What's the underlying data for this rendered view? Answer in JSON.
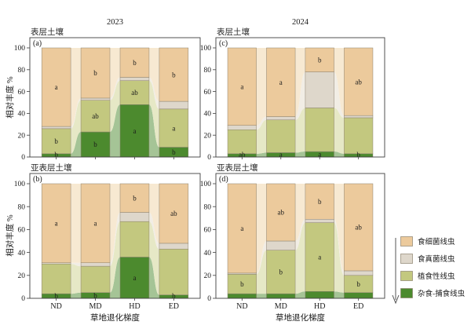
{
  "figure": {
    "ylabel": "相对丰度 %",
    "xlabel": "草地退化梯度",
    "col_titles": [
      "2023",
      "2024"
    ],
    "yticks": [
      0,
      20,
      40,
      60,
      80,
      100
    ]
  },
  "legend": {
    "direction_arrow": "down",
    "items": [
      {
        "label": "食细菌线虫",
        "color": "#ecca9c"
      },
      {
        "label": "食真菌线虫",
        "color": "#ded7cb"
      },
      {
        "label": "植食性线虫",
        "color": "#c3c87f"
      },
      {
        "label": "杂食-捕食线虫",
        "color": "#4c8a2e"
      }
    ]
  },
  "chart_data": [
    {
      "id": "a",
      "type": "bar",
      "variant": "stacked_with_alluvial_flows",
      "panel_label": "(a)",
      "soil_label": "表层土壤",
      "year_title": "2023",
      "categories": [
        "ND",
        "MD",
        "HD",
        "ED"
      ],
      "ylim": [
        0,
        100
      ],
      "yticks": [
        0,
        20,
        40,
        60,
        80,
        100
      ],
      "show_x_tick_labels": false,
      "series": [
        {
          "name": "杂食-捕食线虫",
          "color": "#4c8a2e",
          "flow_color": "#a5c496",
          "values": [
            3,
            23,
            48,
            9
          ],
          "letters": [
            "b",
            "b",
            "a",
            "b"
          ]
        },
        {
          "name": "植食性线虫",
          "color": "#c3c87f",
          "flow_color": "#e6e8c6",
          "values": [
            23,
            29,
            22,
            35
          ],
          "letters": [
            "b",
            "ab",
            "ab",
            "a"
          ]
        },
        {
          "name": "食真菌线虫",
          "color": "#ded7cb",
          "flow_color": "#f1ede5",
          "values": [
            2,
            2,
            3,
            7
          ],
          "letters": [
            "",
            "",
            "",
            ""
          ]
        },
        {
          "name": "食细菌线虫",
          "color": "#ecca9c",
          "flow_color": "#f7e9d2",
          "values": [
            72,
            46,
            27,
            49
          ],
          "letters": [
            "a",
            "b",
            "b",
            "b"
          ]
        }
      ]
    },
    {
      "id": "b",
      "type": "bar",
      "variant": "stacked_with_alluvial_flows",
      "panel_label": "(b)",
      "soil_label": "亚表层土壤",
      "year_title": "2023",
      "categories": [
        "ND",
        "MD",
        "HD",
        "ED"
      ],
      "ylim": [
        0,
        100
      ],
      "yticks": [
        0,
        20,
        40,
        60,
        80,
        100
      ],
      "show_x_tick_labels": true,
      "series": [
        {
          "name": "杂食-捕食线虫",
          "color": "#4c8a2e",
          "flow_color": "#a5c496",
          "values": [
            4,
            5,
            36,
            3
          ],
          "letters": [
            "b",
            "b",
            "a",
            "b"
          ]
        },
        {
          "name": "植食性线虫",
          "color": "#c3c87f",
          "flow_color": "#e6e8c6",
          "values": [
            26,
            23,
            31,
            40
          ],
          "letters": [
            "",
            "",
            "",
            ""
          ]
        },
        {
          "name": "食真菌线虫",
          "color": "#ded7cb",
          "flow_color": "#f1ede5",
          "values": [
            1,
            3,
            8,
            5
          ],
          "letters": [
            "",
            "",
            "",
            ""
          ]
        },
        {
          "name": "食细菌线虫",
          "color": "#ecca9c",
          "flow_color": "#f7e9d2",
          "values": [
            69,
            69,
            25,
            52
          ],
          "letters": [
            "a",
            "a",
            "b",
            "ab"
          ]
        }
      ]
    },
    {
      "id": "c",
      "type": "bar",
      "variant": "stacked_with_alluvial_flows",
      "panel_label": "(c)",
      "soil_label": "表层土壤",
      "year_title": "2024",
      "categories": [
        "ND",
        "MD",
        "HD",
        "ED"
      ],
      "ylim": [
        0,
        100
      ],
      "yticks": [
        0,
        20,
        40,
        60,
        80,
        100
      ],
      "show_x_tick_labels": false,
      "series": [
        {
          "name": "杂食-捕食线虫",
          "color": "#4c8a2e",
          "flow_color": "#a5c496",
          "values": [
            3,
            4,
            5,
            3
          ],
          "letters": [
            "ab",
            "a",
            "a",
            "b"
          ]
        },
        {
          "name": "植食性线虫",
          "color": "#c3c87f",
          "flow_color": "#e6e8c6",
          "values": [
            22,
            30,
            40,
            33
          ],
          "letters": [
            "",
            "",
            "",
            ""
          ]
        },
        {
          "name": "食真菌线虫",
          "color": "#ded7cb",
          "flow_color": "#f1ede5",
          "values": [
            4,
            3,
            33,
            2
          ],
          "letters": [
            "",
            "",
            "",
            ""
          ]
        },
        {
          "name": "食细菌线虫",
          "color": "#ecca9c",
          "flow_color": "#f7e9d2",
          "values": [
            71,
            63,
            22,
            62
          ],
          "letters": [
            "a",
            "a",
            "b",
            "ab"
          ]
        }
      ]
    },
    {
      "id": "d",
      "type": "bar",
      "variant": "stacked_with_alluvial_flows",
      "panel_label": "(d)",
      "soil_label": "亚表层土壤",
      "year_title": "2024",
      "categories": [
        "ND",
        "MD",
        "HD",
        "ED"
      ],
      "ylim": [
        0,
        100
      ],
      "yticks": [
        0,
        20,
        40,
        60,
        80,
        100
      ],
      "show_x_tick_labels": true,
      "series": [
        {
          "name": "杂食-捕食线虫",
          "color": "#4c8a2e",
          "flow_color": "#a5c496",
          "values": [
            4,
            4,
            6,
            5
          ],
          "letters": [
            "",
            "",
            "",
            ""
          ]
        },
        {
          "name": "植食性线虫",
          "color": "#c3c87f",
          "flow_color": "#e6e8c6",
          "values": [
            17,
            38,
            60,
            15
          ],
          "letters": [
            "b",
            "b",
            "a",
            "b"
          ]
        },
        {
          "name": "食真菌线虫",
          "color": "#ded7cb",
          "flow_color": "#f1ede5",
          "values": [
            1,
            8,
            3,
            4
          ],
          "letters": [
            "",
            "",
            "",
            ""
          ]
        },
        {
          "name": "食细菌线虫",
          "color": "#ecca9c",
          "flow_color": "#f7e9d2",
          "values": [
            78,
            50,
            31,
            76
          ],
          "letters": [
            "a",
            "ab",
            "b",
            "ab"
          ]
        }
      ]
    }
  ]
}
